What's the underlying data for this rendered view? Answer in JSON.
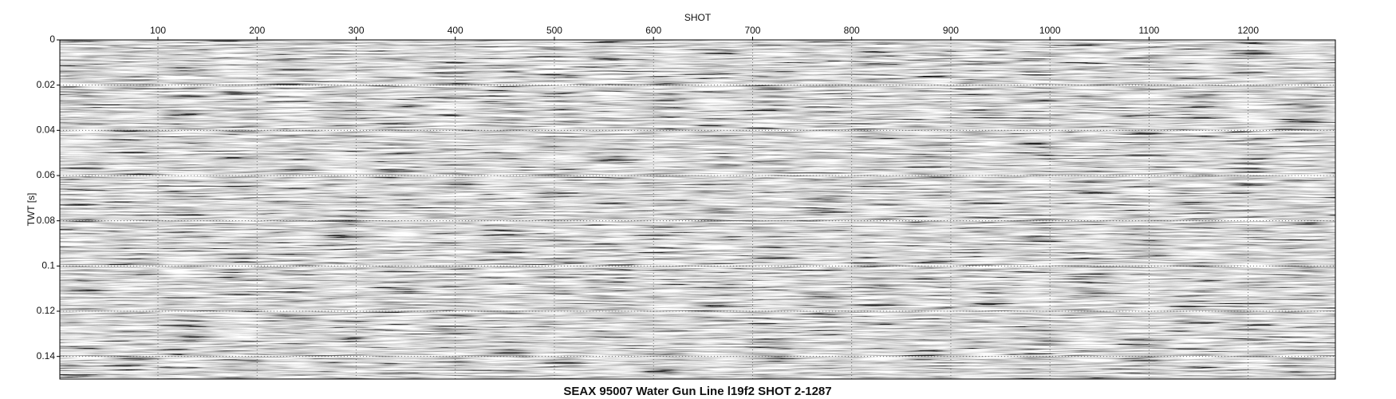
{
  "chart_data": {
    "type": "seismic",
    "title": "SEAX 95007 Water Gun Line l19f2 SHOT 2-1287",
    "x_label": "SHOT",
    "y_label": "TWT [s]",
    "xlim": [
      1,
      1288
    ],
    "xticks": [
      100,
      200,
      300,
      400,
      500,
      600,
      700,
      800,
      900,
      1000,
      1100,
      1200
    ],
    "ylim": [
      0,
      0.15
    ],
    "yticks": [
      0,
      0.02,
      0.04,
      0.06,
      0.08,
      0.1,
      0.12,
      0.14
    ],
    "y_inverted": true,
    "grid": true
  }
}
